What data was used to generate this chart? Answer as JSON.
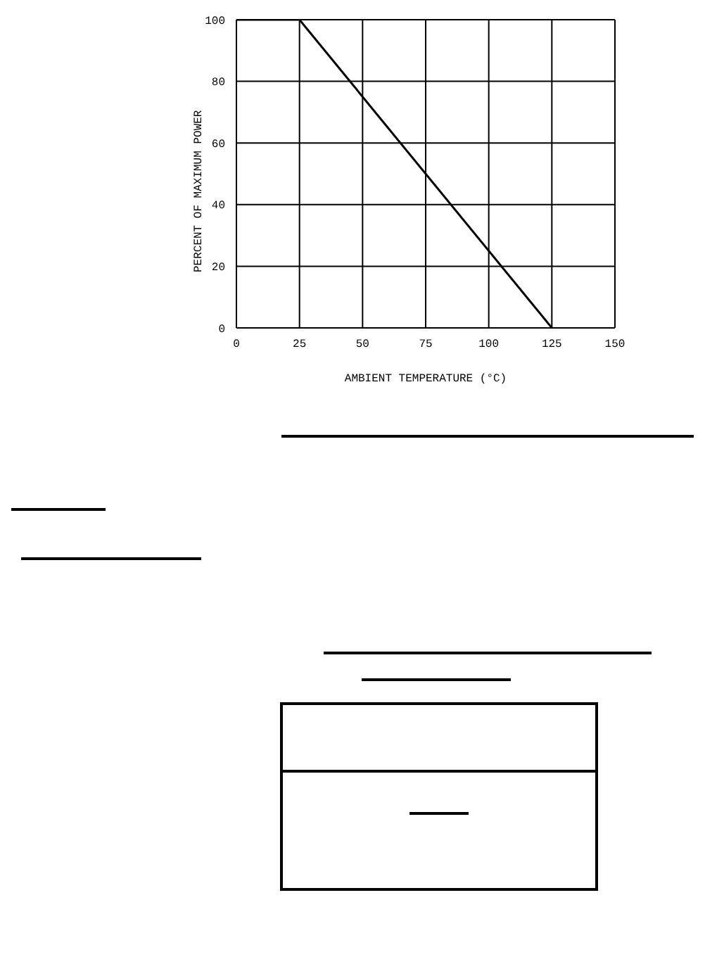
{
  "chart_data": {
    "type": "line",
    "xlabel": "AMBIENT TEMPERATURE (°C)",
    "ylabel": "PERCENT OF MAXIMUM POWER",
    "x": [
      0,
      25,
      125
    ],
    "series": [
      {
        "color": "#000000",
        "values": [
          100,
          100,
          0
        ]
      }
    ],
    "xlim": [
      0,
      150
    ],
    "xticks": [
      0,
      25,
      50,
      75,
      100,
      125,
      150
    ],
    "ylim": [
      0,
      100
    ],
    "yticks": [
      0,
      20,
      40,
      60,
      80,
      100
    ],
    "grid": true,
    "marker": "none",
    "line_style": "solid",
    "legend": false
  }
}
